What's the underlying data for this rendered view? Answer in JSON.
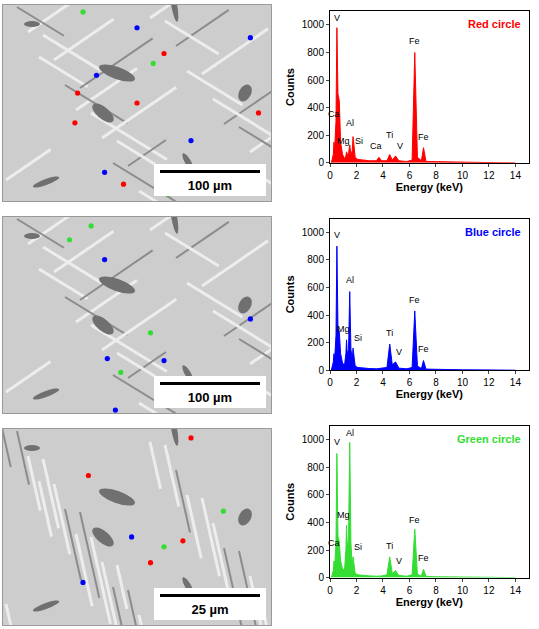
{
  "micrographs": [
    {
      "scale_bar": "100 µm"
    },
    {
      "scale_bar": "100 µm"
    },
    {
      "scale_bar": "25 µm"
    }
  ],
  "chart_data": [
    {
      "type": "line",
      "x_label": "Energy (keV)",
      "y_label": "Counts",
      "grid": false,
      "legend": "upper right",
      "xlim": [
        0,
        15
      ],
      "xticks": [
        0,
        2,
        4,
        6,
        8,
        10,
        12,
        14
      ],
      "ylim": [
        0,
        1100
      ],
      "yticks": [
        0,
        200,
        400,
        600,
        800,
        1000
      ],
      "x": [
        0.1,
        0.25,
        0.3,
        0.35,
        0.45,
        0.52,
        0.6,
        0.7,
        0.8,
        0.95,
        1.1,
        1.2,
        1.25,
        1.3,
        1.4,
        1.49,
        1.58,
        1.68,
        1.74,
        1.8,
        1.9,
        2.1,
        2.5,
        3,
        3.5,
        3.69,
        3.9,
        4.3,
        4.51,
        4.7,
        4.95,
        5.2,
        5.8,
        6.2,
        6.4,
        6.6,
        6.9,
        7.06,
        7.25,
        8,
        9,
        10,
        12,
        14
      ],
      "series": [
        {
          "name": "Red circle",
          "color": "#ff0000",
          "values": [
            0,
            60,
            150,
            100,
            300,
            980,
            500,
            450,
            150,
            60,
            30,
            50,
            80,
            60,
            70,
            130,
            60,
            90,
            190,
            120,
            40,
            25,
            20,
            15,
            15,
            40,
            15,
            15,
            60,
            20,
            50,
            15,
            10,
            20,
            800,
            40,
            15,
            110,
            10,
            8,
            5,
            3,
            2,
            0
          ]
        }
      ],
      "annotations": [
        {
          "text": "V",
          "x": 0.55,
          "y": 1000
        },
        {
          "text": "Ca",
          "x": 0.3,
          "y": 300
        },
        {
          "text": "Mg",
          "x": 1.0,
          "y": 110
        },
        {
          "text": "Al",
          "x": 1.5,
          "y": 240
        },
        {
          "text": "Si",
          "x": 2.2,
          "y": 110
        },
        {
          "text": "Ca",
          "x": 3.5,
          "y": 70
        },
        {
          "text": "Ti",
          "x": 4.5,
          "y": 150
        },
        {
          "text": "V",
          "x": 5.3,
          "y": 70
        },
        {
          "text": "Fe",
          "x": 6.4,
          "y": 830
        },
        {
          "text": "Fe",
          "x": 7.06,
          "y": 140
        }
      ]
    },
    {
      "type": "line",
      "x_label": "Energy (keV)",
      "y_label": "Counts",
      "grid": false,
      "legend": "upper right",
      "xlim": [
        0,
        15
      ],
      "xticks": [
        0,
        2,
        4,
        6,
        8,
        10,
        12,
        14
      ],
      "ylim": [
        0,
        1100
      ],
      "yticks": [
        0,
        200,
        400,
        600,
        800,
        1000
      ],
      "x": [
        0.1,
        0.25,
        0.3,
        0.35,
        0.45,
        0.52,
        0.6,
        0.7,
        0.8,
        0.95,
        1.1,
        1.2,
        1.25,
        1.3,
        1.4,
        1.49,
        1.58,
        1.68,
        1.74,
        1.8,
        1.9,
        2.1,
        2.5,
        3,
        3.5,
        3.69,
        3.9,
        4.3,
        4.51,
        4.7,
        4.95,
        5.2,
        5.8,
        6.2,
        6.4,
        6.6,
        6.9,
        7.06,
        7.25,
        8,
        9,
        10,
        12,
        14
      ],
      "series": [
        {
          "name": "Blue circle",
          "color": "#0000ff",
          "values": [
            0,
            60,
            120,
            80,
            250,
            900,
            300,
            280,
            120,
            50,
            40,
            120,
            220,
            120,
            150,
            570,
            150,
            80,
            160,
            100,
            30,
            20,
            15,
            12,
            10,
            12,
            12,
            20,
            190,
            40,
            60,
            15,
            10,
            20,
            430,
            30,
            12,
            70,
            8,
            6,
            4,
            3,
            2,
            0
          ]
        }
      ],
      "annotations": [
        {
          "text": "V",
          "x": 0.55,
          "y": 930
        },
        {
          "text": "Mg",
          "x": 1.0,
          "y": 250
        },
        {
          "text": "Al",
          "x": 1.5,
          "y": 600
        },
        {
          "text": "Si",
          "x": 2.1,
          "y": 180
        },
        {
          "text": "Ti",
          "x": 4.5,
          "y": 220
        },
        {
          "text": "V",
          "x": 5.2,
          "y": 80
        },
        {
          "text": "Fe",
          "x": 6.4,
          "y": 460
        },
        {
          "text": "Fe",
          "x": 7.06,
          "y": 100
        }
      ]
    },
    {
      "type": "line",
      "x_label": "Energy (keV)",
      "y_label": "Counts",
      "grid": false,
      "legend": "upper right",
      "xlim": [
        0,
        15
      ],
      "xticks": [
        0,
        2,
        4,
        6,
        8,
        10,
        12,
        14
      ],
      "ylim": [
        0,
        1100
      ],
      "yticks": [
        0,
        200,
        400,
        600,
        800,
        1000
      ],
      "x": [
        0.1,
        0.25,
        0.3,
        0.35,
        0.45,
        0.52,
        0.6,
        0.7,
        0.8,
        0.95,
        1.1,
        1.2,
        1.25,
        1.3,
        1.4,
        1.49,
        1.58,
        1.68,
        1.74,
        1.8,
        1.9,
        2.1,
        2.5,
        3,
        3.5,
        3.69,
        3.9,
        4.3,
        4.51,
        4.7,
        4.95,
        5.2,
        5.8,
        6.2,
        6.4,
        6.6,
        6.9,
        7.06,
        7.25,
        8,
        9,
        10,
        12,
        14
      ],
      "series": [
        {
          "name": "Green circle",
          "color": "#33dd33",
          "values": [
            0,
            50,
            120,
            80,
            250,
            900,
            300,
            260,
            120,
            60,
            60,
            200,
            380,
            200,
            300,
            980,
            250,
            80,
            150,
            90,
            30,
            20,
            15,
            12,
            10,
            10,
            12,
            20,
            150,
            30,
            50,
            15,
            10,
            20,
            350,
            25,
            10,
            60,
            8,
            6,
            4,
            3,
            2,
            0
          ]
        }
      ],
      "annotations": [
        {
          "text": "V",
          "x": 0.5,
          "y": 930
        },
        {
          "text": "Al",
          "x": 1.5,
          "y": 1000
        },
        {
          "text": "Ca",
          "x": 0.3,
          "y": 200
        },
        {
          "text": "Mg",
          "x": 1.0,
          "y": 400
        },
        {
          "text": "Si",
          "x": 2.1,
          "y": 170
        },
        {
          "text": "Ti",
          "x": 4.5,
          "y": 180
        },
        {
          "text": "V",
          "x": 5.2,
          "y": 70
        },
        {
          "text": "Fe",
          "x": 6.4,
          "y": 370
        },
        {
          "text": "Fe",
          "x": 7.06,
          "y": 90
        }
      ]
    }
  ]
}
